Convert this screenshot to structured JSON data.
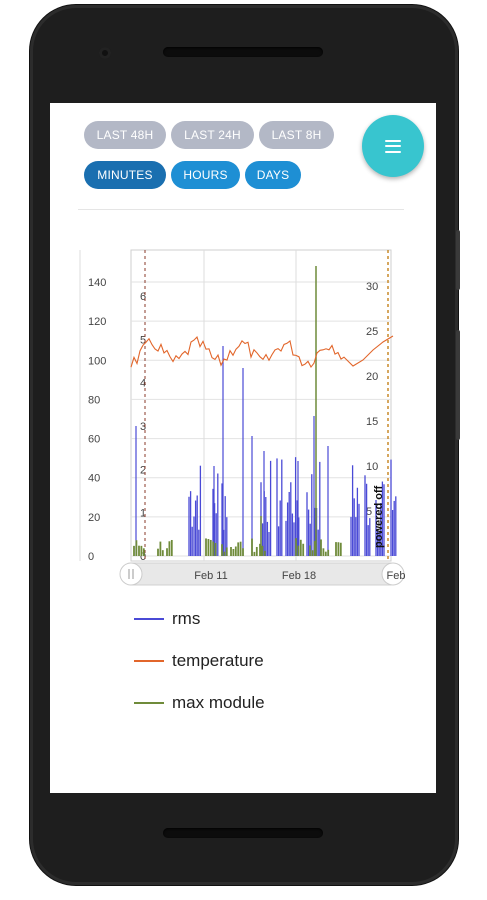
{
  "filters": {
    "range": [
      {
        "label": "LAST 48H"
      },
      {
        "label": "LAST 24H"
      },
      {
        "label": "LAST 8H"
      }
    ],
    "granularity": [
      {
        "label": "MINUTES",
        "active": true
      },
      {
        "label": "HOURS",
        "active": false
      },
      {
        "label": "DAYS",
        "active": false
      }
    ]
  },
  "menu_icon": "hamburger-menu-icon",
  "chart_data": {
    "type": "line",
    "x_ticks": [
      "Feb 11",
      "Feb 18",
      "Feb"
    ],
    "y_axes": {
      "left_outer": {
        "ticks": [
          0,
          20,
          40,
          60,
          80,
          100,
          120,
          140
        ]
      },
      "left_inner": {
        "ticks": [
          0,
          1,
          2,
          3,
          4,
          5,
          6
        ]
      },
      "right": {
        "ticks": [
          5,
          10,
          15,
          20,
          25,
          30
        ]
      }
    },
    "annotation": "powered off",
    "series": [
      {
        "name": "rms",
        "color": "#4a4ad6"
      },
      {
        "name": "temperature",
        "color": "#e2662b"
      },
      {
        "name": "max module",
        "color": "#6f8b3a"
      }
    ]
  },
  "colors": {
    "range_pill": "#b3b8c6",
    "granularity_pill": "#1e8fd4",
    "granularity_active": "#1a6fb0",
    "fab": "#38c5cf"
  }
}
